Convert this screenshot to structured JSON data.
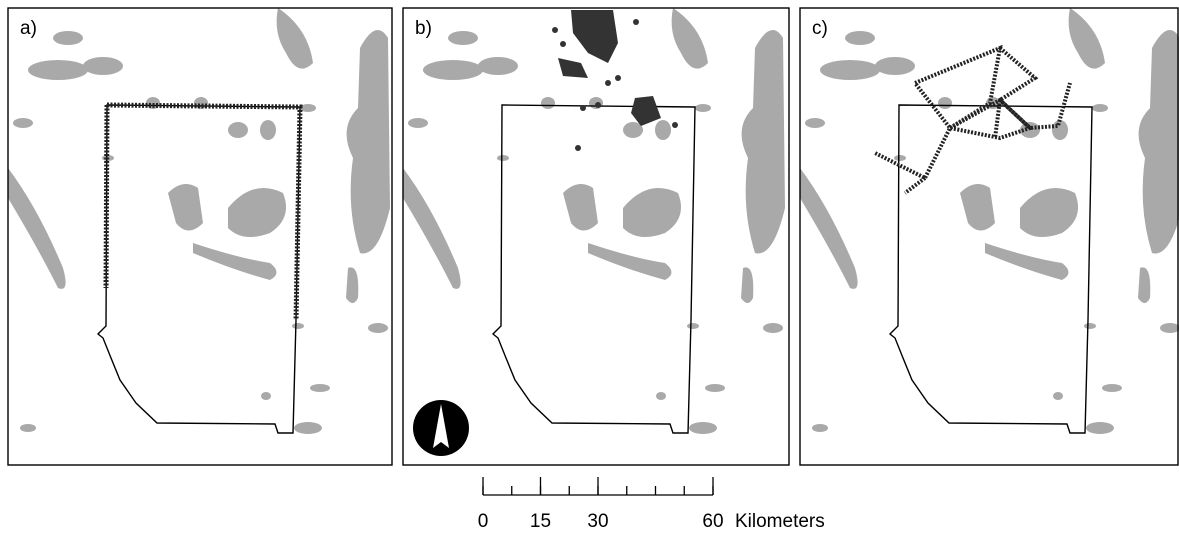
{
  "panels": [
    {
      "label": "a)"
    },
    {
      "label": "b)"
    },
    {
      "label": "c)"
    }
  ],
  "scale_bar": {
    "ticks": [
      0,
      15,
      30,
      60
    ],
    "unit": "Kilometers"
  }
}
